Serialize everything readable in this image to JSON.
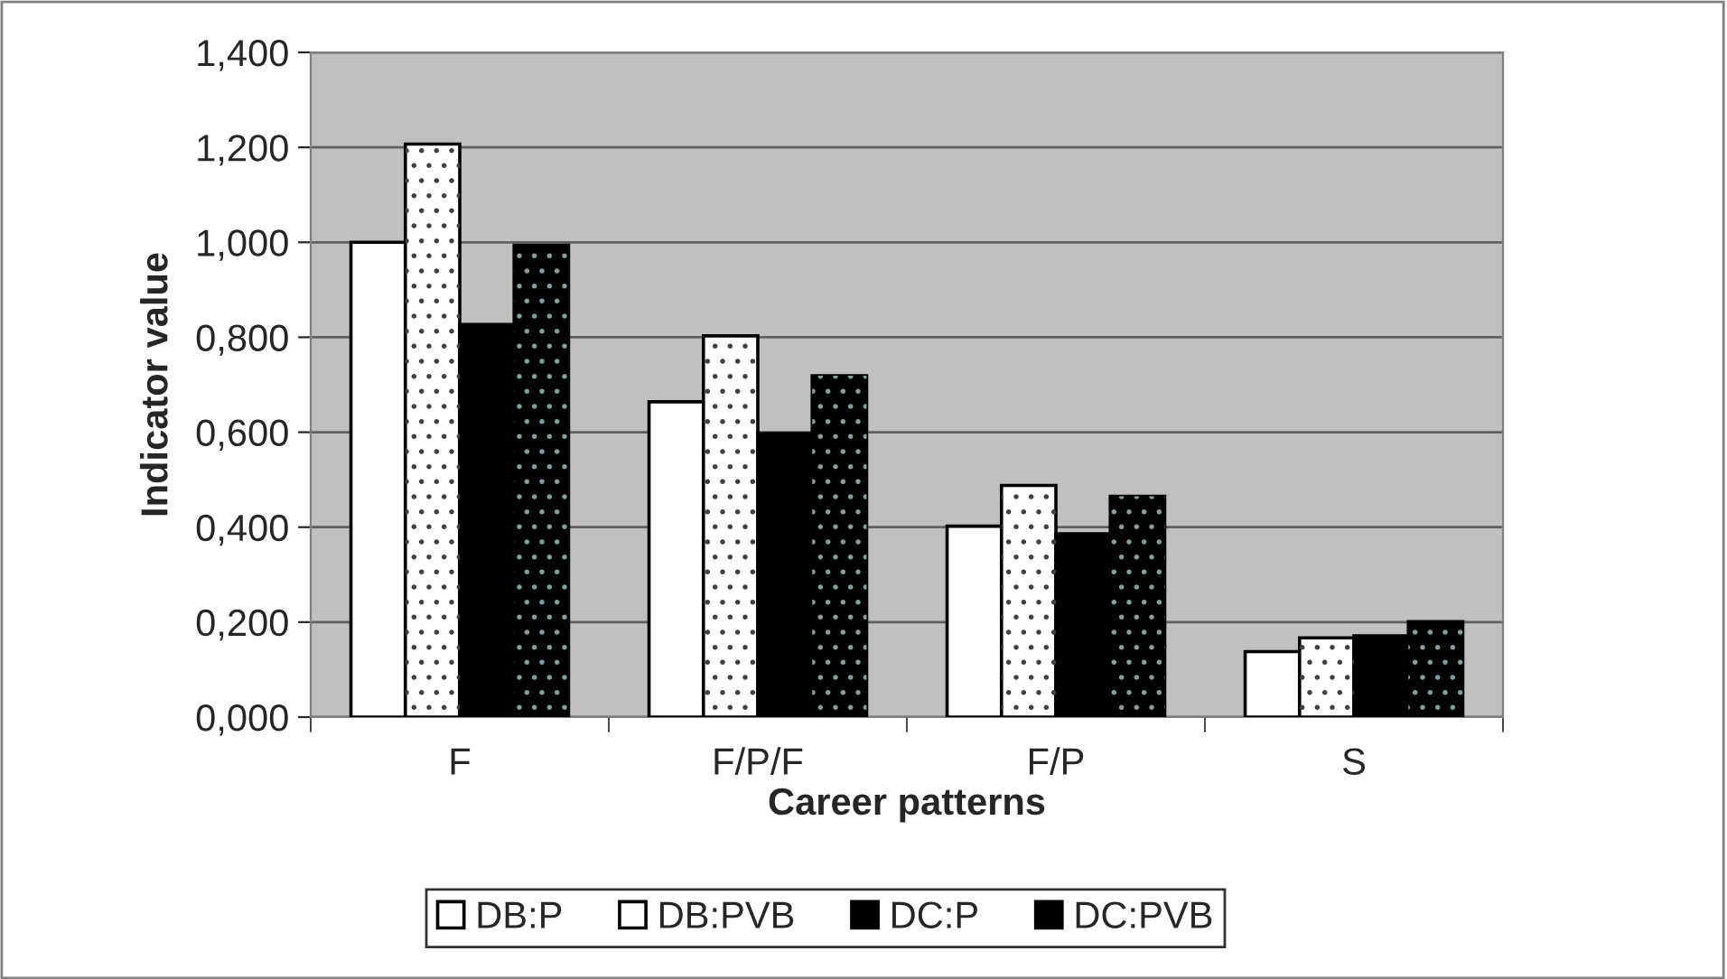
{
  "chart_data": {
    "type": "bar",
    "xlabel": "Career patterns",
    "ylabel": "Indicator value",
    "categories": [
      "F",
      "F/P/F",
      "F/P",
      "S"
    ],
    "series": [
      {
        "name": "DB:P",
        "color": "#ffffff",
        "values": [
          1.0,
          0.664,
          0.402,
          0.138
        ]
      },
      {
        "name": "DB:PVB",
        "color": "#ffffff",
        "values": [
          1.207,
          0.803,
          0.488,
          0.167
        ]
      },
      {
        "name": "DC:P",
        "color": "#000000",
        "values": [
          0.827,
          0.597,
          0.386,
          0.171
        ]
      },
      {
        "name": "DC:PVB",
        "color": "#000000",
        "values": [
          0.994,
          0.719,
          0.465,
          0.201
        ]
      }
    ],
    "ylim": [
      0,
      1.4
    ],
    "yticks": [
      {
        "value": 0,
        "label": "0,000"
      },
      {
        "value": 0.2,
        "label": "0,200"
      },
      {
        "value": 0.4,
        "label": "0,400"
      },
      {
        "value": 0.6,
        "label": "0,600"
      },
      {
        "value": 0.8,
        "label": "0,800"
      },
      {
        "value": 1.0,
        "label": "1,000"
      },
      {
        "value": 1.2,
        "label": "1,200"
      },
      {
        "value": 1.4,
        "label": "1,400"
      }
    ],
    "grid": "y",
    "legend": "bottom"
  }
}
